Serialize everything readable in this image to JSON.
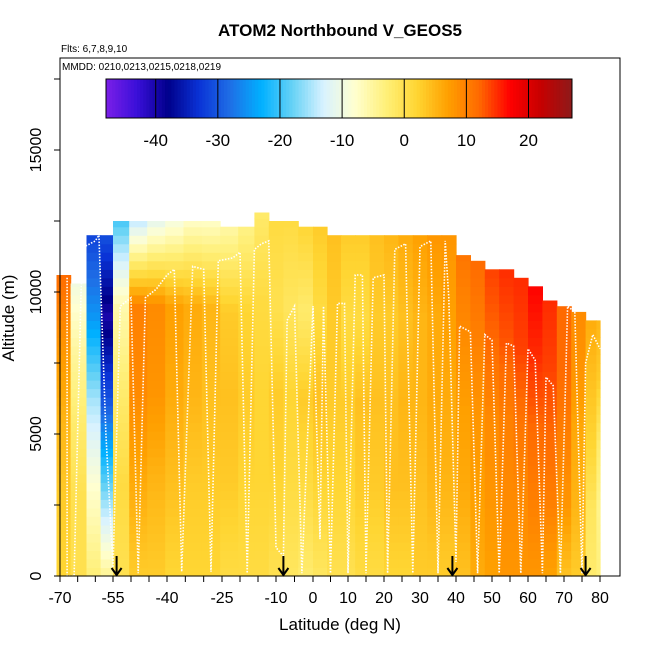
{
  "chart_data": {
    "type": "heatmap",
    "title": "ATOM2 Northbound V_GEOS5",
    "flights_label": "Flts: 6,7,8,9,10",
    "dates_label": "MMDD: 0210,0213,0215,0218,0219",
    "xlabel": "Latitude (deg N)",
    "ylabel": "Altitude (m)",
    "xlim": [
      -70,
      80
    ],
    "ylim": [
      0,
      18000
    ],
    "x_tick_labels": [
      "-70",
      "-55",
      "-40",
      "-25",
      "-10",
      "0",
      "10",
      "20",
      "30",
      "40",
      "50",
      "60",
      "70",
      "80"
    ],
    "y_tick_labels": [
      "0",
      "5000",
      "10000",
      "15000"
    ],
    "colorbar": {
      "min": -48,
      "max": 27,
      "tick_labels": [
        "-40",
        "-30",
        "-20",
        "-10",
        "0",
        "10",
        "20"
      ],
      "colors": [
        "#7b1fe8",
        "#3a0fd9",
        "#00008b",
        "#0a33d6",
        "#1f6fe6",
        "#00b0ff",
        "#66d2f5",
        "#d8f2ff",
        "#ffffd0",
        "#fff07a",
        "#ffd633",
        "#ffa000",
        "#ff6a00",
        "#ff0000",
        "#c60000",
        "#8e1a1a"
      ]
    },
    "columns": [
      {
        "lat": -69,
        "top": 10600,
        "profile": [
          2,
          3,
          5,
          8,
          12
        ]
      },
      {
        "lat": -65,
        "top": 10300,
        "profile": [
          0,
          0,
          -2,
          -5,
          -10
        ]
      },
      {
        "lat": -60,
        "top": 12000,
        "profile": [
          -3,
          -8,
          -15,
          -25,
          -32
        ]
      },
      {
        "lat": -57,
        "top": 12000,
        "profile": [
          -5,
          -18,
          -30,
          -40,
          -30
        ]
      },
      {
        "lat": -53,
        "top": 12500,
        "profile": [
          0,
          1,
          -2,
          -6,
          -20
        ]
      },
      {
        "lat": -48,
        "top": 12500,
        "profile": [
          3,
          6,
          9,
          10,
          -15
        ]
      },
      {
        "lat": -43,
        "top": 12500,
        "profile": [
          3,
          5,
          8,
          9,
          -12
        ]
      },
      {
        "lat": -38,
        "top": 12500,
        "profile": [
          2,
          4,
          6,
          7,
          -10
        ]
      },
      {
        "lat": -33,
        "top": 12500,
        "profile": [
          2,
          3,
          5,
          6,
          -8
        ]
      },
      {
        "lat": -28,
        "top": 12500,
        "profile": [
          2,
          3,
          4,
          5,
          -8
        ]
      },
      {
        "lat": -23,
        "top": 12300,
        "profile": [
          1,
          3,
          4,
          3,
          -6
        ]
      },
      {
        "lat": -18,
        "top": 12300,
        "profile": [
          1,
          2,
          3,
          2,
          -4
        ]
      },
      {
        "lat": -14,
        "top": 12800,
        "profile": [
          1,
          2,
          2,
          1,
          -2
        ]
      },
      {
        "lat": -10,
        "top": 12500,
        "profile": [
          0,
          2,
          3,
          0,
          1
        ]
      },
      {
        "lat": -6,
        "top": 12500,
        "profile": [
          -1,
          1,
          2,
          -1,
          1
        ]
      },
      {
        "lat": -2,
        "top": 12300,
        "profile": [
          -2,
          1,
          3,
          -2,
          2
        ]
      },
      {
        "lat": 2,
        "top": 12300,
        "profile": [
          -1,
          2,
          4,
          1,
          3
        ]
      },
      {
        "lat": 6,
        "top": 12000,
        "profile": [
          0,
          2,
          3,
          3,
          4
        ]
      },
      {
        "lat": 10,
        "top": 12000,
        "profile": [
          0,
          2,
          3,
          1,
          3
        ]
      },
      {
        "lat": 14,
        "top": 12000,
        "profile": [
          1,
          3,
          4,
          1,
          3
        ]
      },
      {
        "lat": 18,
        "top": 12000,
        "profile": [
          1,
          3,
          4,
          3,
          4
        ]
      },
      {
        "lat": 22,
        "top": 12000,
        "profile": [
          2,
          4,
          4,
          3,
          5
        ]
      },
      {
        "lat": 26,
        "top": 12000,
        "profile": [
          2,
          4,
          5,
          4,
          6
        ]
      },
      {
        "lat": 30,
        "top": 12000,
        "profile": [
          3,
          4,
          5,
          5,
          7
        ]
      },
      {
        "lat": 34,
        "top": 12000,
        "profile": [
          3,
          5,
          6,
          6,
          8
        ]
      },
      {
        "lat": 38,
        "top": 12000,
        "profile": [
          3,
          5,
          6,
          7,
          8
        ]
      },
      {
        "lat": 42,
        "top": 11300,
        "profile": [
          4,
          6,
          7,
          9,
          11
        ]
      },
      {
        "lat": 46,
        "top": 11100,
        "profile": [
          6,
          7,
          8,
          10,
          12
        ]
      },
      {
        "lat": 50,
        "top": 10800,
        "profile": [
          7,
          8,
          9,
          12,
          14
        ]
      },
      {
        "lat": 54,
        "top": 10800,
        "profile": [
          8,
          9,
          10,
          13,
          15
        ]
      },
      {
        "lat": 58,
        "top": 10500,
        "profile": [
          8,
          9,
          11,
          14,
          15
        ]
      },
      {
        "lat": 62,
        "top": 10200,
        "profile": [
          8,
          10,
          12,
          15,
          17
        ]
      },
      {
        "lat": 66,
        "top": 9700,
        "profile": [
          7,
          10,
          12,
          14,
          15
        ]
      },
      {
        "lat": 70,
        "top": 9500,
        "profile": [
          4,
          8,
          10,
          12,
          12
        ]
      },
      {
        "lat": 74,
        "top": 9300,
        "profile": [
          3,
          5,
          6,
          8,
          9
        ]
      },
      {
        "lat": 78,
        "top": 9000,
        "profile": [
          -2,
          -1,
          2,
          4,
          6
        ]
      },
      {
        "lat": 80,
        "top": 9000,
        "profile": [
          -3,
          -4,
          -2,
          3,
          5
        ]
      }
    ],
    "flight_track": [
      [
        -68,
        10500
      ],
      [
        -68,
        0
      ],
      [
        -66,
        0
      ],
      [
        -64,
        10200
      ],
      [
        -63,
        11600
      ],
      [
        -60,
        11800
      ],
      [
        -59,
        12000
      ],
      [
        -57,
        5000
      ],
      [
        -55,
        300
      ],
      [
        -53,
        9500
      ],
      [
        -50,
        9800
      ],
      [
        -48,
        100
      ],
      [
        -46,
        9800
      ],
      [
        -43,
        10100
      ],
      [
        -40,
        10600
      ],
      [
        -38,
        10800
      ],
      [
        -36,
        150
      ],
      [
        -33,
        10900
      ],
      [
        -30,
        10800
      ],
      [
        -28,
        150
      ],
      [
        -26,
        11100
      ],
      [
        -22,
        11200
      ],
      [
        -20,
        11400
      ],
      [
        -18,
        100
      ],
      [
        -16,
        11500
      ],
      [
        -14,
        11700
      ],
      [
        -12,
        11800
      ],
      [
        -10,
        1000
      ],
      [
        -8,
        700
      ],
      [
        -7,
        9000
      ],
      [
        -5,
        9500
      ],
      [
        -3,
        100
      ],
      [
        0,
        9500
      ],
      [
        2,
        1300
      ],
      [
        3,
        9500
      ],
      [
        5,
        100
      ],
      [
        7,
        9600
      ],
      [
        9,
        9600
      ],
      [
        10,
        100
      ],
      [
        12,
        10600
      ],
      [
        14,
        10600
      ],
      [
        15,
        100
      ],
      [
        17,
        10500
      ],
      [
        20,
        10600
      ],
      [
        21,
        100
      ],
      [
        23,
        11500
      ],
      [
        26,
        11700
      ],
      [
        28,
        100
      ],
      [
        30,
        11600
      ],
      [
        33,
        11800
      ],
      [
        35,
        100
      ],
      [
        37,
        11800
      ],
      [
        38,
        9800
      ],
      [
        40,
        500
      ],
      [
        41,
        8800
      ],
      [
        44,
        8600
      ],
      [
        46,
        100
      ],
      [
        48,
        8500
      ],
      [
        50,
        8300
      ],
      [
        52,
        100
      ],
      [
        54,
        8200
      ],
      [
        56,
        8100
      ],
      [
        58,
        100
      ],
      [
        60,
        8000
      ],
      [
        62,
        7600
      ],
      [
        64,
        100
      ],
      [
        65,
        7000
      ],
      [
        67,
        6700
      ],
      [
        69,
        100
      ],
      [
        71,
        9500
      ],
      [
        73,
        9300
      ],
      [
        75,
        100
      ],
      [
        76,
        7500
      ],
      [
        78,
        8500
      ],
      [
        80,
        8000
      ]
    ],
    "sonde_arrows": [
      -54,
      -8,
      39,
      76
    ]
  }
}
